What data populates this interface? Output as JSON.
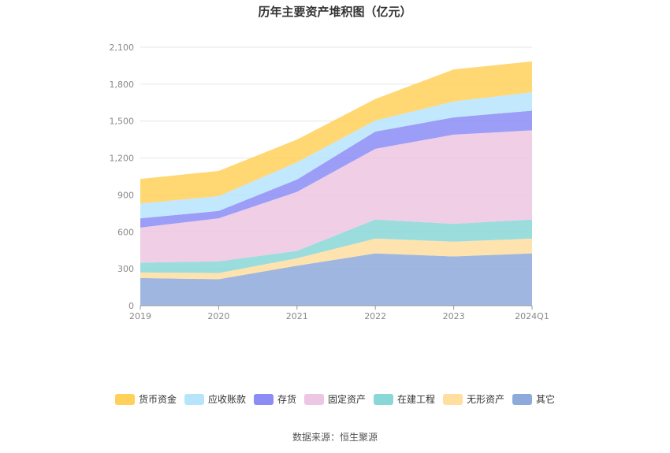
{
  "page": {
    "title": "历年主要资产堆积图（亿元）",
    "source": "数据来源：恒生聚源"
  },
  "chart_data": {
    "type": "area",
    "stacked": true,
    "title": "历年主要资产堆积图（亿元）",
    "categories": [
      "2019",
      "2020",
      "2021",
      "2022",
      "2023",
      "2024Q1"
    ],
    "ylim": [
      0,
      2100
    ],
    "yticks": [
      0,
      300,
      600,
      900,
      1200,
      1500,
      1800,
      2100
    ],
    "ytick_labels": [
      "0",
      "300",
      "600",
      "900",
      "1,200",
      "1,500",
      "1,800",
      "2,100"
    ],
    "grid": true,
    "legend_position": "bottom",
    "series": [
      {
        "name": "其它",
        "color": "#8eaadb",
        "values": [
          225,
          215,
          325,
          425,
          400,
          425
        ]
      },
      {
        "name": "无形资产",
        "color": "#ffdea0",
        "values": [
          45,
          50,
          60,
          120,
          120,
          120
        ]
      },
      {
        "name": "在建工程",
        "color": "#8ad7d7",
        "values": [
          80,
          95,
          60,
          155,
          145,
          155
        ]
      },
      {
        "name": "固定资产",
        "color": "#ecc6e2",
        "values": [
          285,
          350,
          480,
          575,
          725,
          725
        ]
      },
      {
        "name": "存货",
        "color": "#8b8cf4",
        "values": [
          75,
          60,
          100,
          140,
          140,
          160
        ]
      },
      {
        "name": "应收账款",
        "color": "#b6e4fb",
        "values": [
          120,
          120,
          140,
          90,
          130,
          150
        ]
      },
      {
        "name": "货币资金",
        "color": "#ffd05a",
        "values": [
          200,
          205,
          185,
          175,
          260,
          250
        ]
      }
    ]
  }
}
